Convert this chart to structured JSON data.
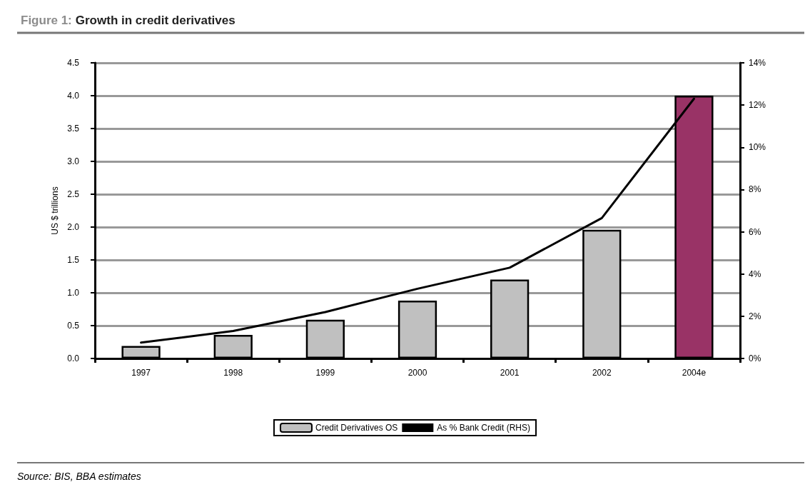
{
  "chart_data": {
    "type": "bar",
    "title": "Figure 1: Growth in credit derivatives",
    "ylabel": "US $ trillions",
    "categories": [
      "1997",
      "1998",
      "1999",
      "2000",
      "2001",
      "2002",
      "2004e"
    ],
    "series": [
      {
        "name": "Credit Derivatives OS",
        "color": "#c0c0c0",
        "colors": [
          "#c0c0c0",
          "#c0c0c0",
          "#c0c0c0",
          "#c0c0c0",
          "#c0c0c0",
          "#c0c0c0",
          "#993366"
        ],
        "values": [
          0.19,
          0.36,
          0.59,
          0.88,
          1.2,
          1.96,
          4.0
        ]
      },
      {
        "name": "As % Bank Credit (RHS)",
        "type": "line",
        "axis": "y2",
        "color": "#000000",
        "values": [
          0.75,
          1.3,
          2.2,
          3.3,
          4.3,
          6.65,
          12.3
        ]
      }
    ],
    "ylim": [
      0,
      4.5
    ],
    "yticks": [
      {
        "value": 0,
        "label": "0.0"
      },
      {
        "value": 0.5,
        "label": "0.5"
      },
      {
        "value": 1,
        "label": "1.0"
      },
      {
        "value": 1.5,
        "label": "1.5"
      },
      {
        "value": 2,
        "label": "2.0"
      },
      {
        "value": 2.5,
        "label": "2.5"
      },
      {
        "value": 3,
        "label": "3.0"
      },
      {
        "value": 3.5,
        "label": "3.5"
      },
      {
        "value": 4,
        "label": "4.0"
      },
      {
        "value": 4.5,
        "label": "4.5"
      }
    ],
    "y2lim": [
      0,
      14
    ],
    "y2ticks": [
      {
        "value": 0,
        "label": "0%"
      },
      {
        "value": 2,
        "label": "2%"
      },
      {
        "value": 4,
        "label": "4%"
      },
      {
        "value": 6,
        "label": "6%"
      },
      {
        "value": 8,
        "label": "8%"
      },
      {
        "value": 10,
        "label": "10%"
      },
      {
        "value": 12,
        "label": "12%"
      },
      {
        "value": 14,
        "label": "14%"
      }
    ],
    "grid": "y",
    "legend": "bottom",
    "marker": "none",
    "line_style": "solid",
    "annotations": [
      "Source: BIS, BBA estimates"
    ]
  }
}
